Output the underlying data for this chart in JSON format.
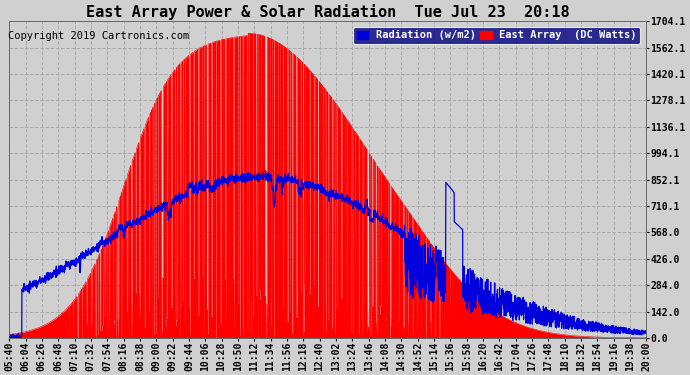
{
  "title": "East Array Power & Solar Radiation  Tue Jul 23  20:18",
  "copyright": "Copyright 2019 Cartronics.com",
  "legend_radiation": "Radiation (w/m2)",
  "legend_east": "East Array  (DC Watts)",
  "background_color": "#d0d0d0",
  "plot_bg_color": "#d0d0d0",
  "yticks": [
    0.0,
    142.0,
    284.0,
    426.0,
    568.0,
    710.1,
    852.1,
    994.1,
    1136.1,
    1278.1,
    1420.1,
    1562.1,
    1704.1
  ],
  "ymax": 1704.1,
  "ymin": 0.0,
  "radiation_color": "#0000dd",
  "power_color": "#ff0000",
  "title_fontsize": 11,
  "axis_fontsize": 7,
  "copyright_fontsize": 7.5,
  "grid_color": "#aaaaaa",
  "xtick_labels": [
    "05:40",
    "06:04",
    "06:26",
    "06:48",
    "07:10",
    "07:32",
    "07:54",
    "08:16",
    "08:38",
    "09:00",
    "09:22",
    "09:44",
    "10:06",
    "10:28",
    "10:50",
    "11:12",
    "11:34",
    "11:56",
    "12:18",
    "12:40",
    "13:02",
    "13:24",
    "13:46",
    "14:08",
    "14:30",
    "14:52",
    "15:14",
    "15:36",
    "15:58",
    "16:20",
    "16:42",
    "17:04",
    "17:26",
    "17:48",
    "18:10",
    "18:32",
    "18:54",
    "19:16",
    "19:38",
    "20:00"
  ]
}
